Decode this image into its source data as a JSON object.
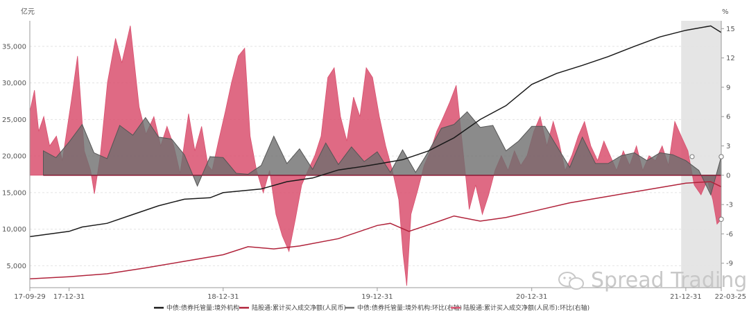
{
  "chart_data": {
    "type": "line",
    "y_left_unit": "亿元",
    "y_right_unit": "%",
    "y_left_ticks": [
      "5,000",
      "10,000",
      "15,000",
      "20,000",
      "25,000",
      "30,000",
      "35,000"
    ],
    "y_right_ticks": [
      "-9",
      "-6",
      "-3",
      "0",
      "3",
      "6",
      "9",
      "12",
      "15"
    ],
    "y_left_range": [
      2000,
      38500
    ],
    "y_right_range": [
      -11.5,
      15.8
    ],
    "x_ticks": [
      "17-09-29",
      "17-12-31",
      "18-12-31",
      "19-12-31",
      "20-12-31",
      "21-12-31",
      "22-03-25"
    ],
    "x_range": [
      "2017-09-29",
      "2022-03-25"
    ],
    "highlight_range": [
      "2021-12-20",
      "2022-03-25"
    ],
    "grid": "horizontal-dashed",
    "legend_position": "bottom",
    "watermark": "Spread Trading",
    "colors": {
      "custody": "#1a1a1a",
      "northbound": "#b0223a",
      "custody_mom": "#6e6e6e",
      "northbound_mom": "#d9506f",
      "highlight": "#e5e5e5"
    },
    "series": [
      {
        "name": "中债:债券托管量:境外机构",
        "axis": "left",
        "points": [
          [
            "2017-09-29",
            8980
          ],
          [
            "2017-12-31",
            9700
          ],
          [
            "2018-01-31",
            10300
          ],
          [
            "2018-03-31",
            10800
          ],
          [
            "2018-05-31",
            12000
          ],
          [
            "2018-07-31",
            13200
          ],
          [
            "2018-09-30",
            14100
          ],
          [
            "2018-11-30",
            14300
          ],
          [
            "2018-12-31",
            15000
          ],
          [
            "2019-03-31",
            15500
          ],
          [
            "2019-05-31",
            16500
          ],
          [
            "2019-07-31",
            17000
          ],
          [
            "2019-09-30",
            18100
          ],
          [
            "2019-11-30",
            18600
          ],
          [
            "2019-12-31",
            18900
          ],
          [
            "2020-02-29",
            19500
          ],
          [
            "2020-04-30",
            20700
          ],
          [
            "2020-06-30",
            22500
          ],
          [
            "2020-08-31",
            25000
          ],
          [
            "2020-10-31",
            26900
          ],
          [
            "2020-12-31",
            29800
          ],
          [
            "2021-02-28",
            31300
          ],
          [
            "2021-04-30",
            32400
          ],
          [
            "2021-06-30",
            33600
          ],
          [
            "2021-08-31",
            35000
          ],
          [
            "2021-10-31",
            36300
          ],
          [
            "2021-12-31",
            37200
          ],
          [
            "2022-02-28",
            37800
          ],
          [
            "2022-03-25",
            36900
          ]
        ]
      },
      {
        "name": "陆股通:累计买入成交净额(人民币)",
        "axis": "left",
        "points": [
          [
            "2017-09-29",
            3200
          ],
          [
            "2017-12-31",
            3500
          ],
          [
            "2018-03-31",
            3900
          ],
          [
            "2018-06-30",
            4700
          ],
          [
            "2018-09-30",
            5600
          ],
          [
            "2018-12-31",
            6500
          ],
          [
            "2019-02-28",
            7600
          ],
          [
            "2019-04-30",
            7300
          ],
          [
            "2019-06-30",
            7700
          ],
          [
            "2019-09-30",
            8700
          ],
          [
            "2019-12-31",
            10500
          ],
          [
            "2020-01-31",
            10800
          ],
          [
            "2020-03-15",
            9700
          ],
          [
            "2020-05-31",
            11200
          ],
          [
            "2020-06-30",
            11800
          ],
          [
            "2020-08-31",
            11100
          ],
          [
            "2020-10-31",
            11600
          ],
          [
            "2020-12-31",
            12400
          ],
          [
            "2021-03-31",
            13600
          ],
          [
            "2021-06-30",
            14500
          ],
          [
            "2021-09-30",
            15400
          ],
          [
            "2021-12-31",
            16300
          ],
          [
            "2022-02-28",
            16500
          ],
          [
            "2022-03-25",
            15800
          ]
        ]
      },
      {
        "name": "中债:债券托管量:境外机构:环比(右轴)",
        "axis": "right",
        "points": [
          [
            "2017-10-31",
            2.5
          ],
          [
            "2017-11-30",
            1.8
          ],
          [
            "2017-12-31",
            3.4
          ],
          [
            "2018-01-31",
            5.2
          ],
          [
            "2018-02-28",
            2.3
          ],
          [
            "2018-03-31",
            1.7
          ],
          [
            "2018-04-30",
            5.1
          ],
          [
            "2018-05-31",
            4.1
          ],
          [
            "2018-06-30",
            5.9
          ],
          [
            "2018-07-31",
            3.9
          ],
          [
            "2018-08-31",
            3.7
          ],
          [
            "2018-09-30",
            2.1
          ],
          [
            "2018-10-31",
            -1.1
          ],
          [
            "2018-11-30",
            1.9
          ],
          [
            "2018-12-31",
            1.8
          ],
          [
            "2019-01-31",
            0.2
          ],
          [
            "2019-02-28",
            0.1
          ],
          [
            "2019-03-31",
            1.0
          ],
          [
            "2019-04-30",
            4.0
          ],
          [
            "2019-05-31",
            1.2
          ],
          [
            "2019-06-30",
            2.7
          ],
          [
            "2019-07-31",
            0.6
          ],
          [
            "2019-08-31",
            3.3
          ],
          [
            "2019-09-30",
            1.1
          ],
          [
            "2019-10-31",
            2.9
          ],
          [
            "2019-11-30",
            1.4
          ],
          [
            "2019-12-31",
            2.4
          ],
          [
            "2020-01-31",
            0.3
          ],
          [
            "2020-02-29",
            2.6
          ],
          [
            "2020-03-31",
            0.3
          ],
          [
            "2020-04-30",
            2.4
          ],
          [
            "2020-05-31",
            4.8
          ],
          [
            "2020-06-30",
            5.2
          ],
          [
            "2020-07-31",
            6.5
          ],
          [
            "2020-08-31",
            4.9
          ],
          [
            "2020-09-30",
            5.1
          ],
          [
            "2020-10-31",
            2.5
          ],
          [
            "2020-11-30",
            3.5
          ],
          [
            "2020-12-31",
            5.0
          ],
          [
            "2021-01-31",
            5.0
          ],
          [
            "2021-02-28",
            3.0
          ],
          [
            "2021-03-31",
            0.8
          ],
          [
            "2021-04-30",
            3.9
          ],
          [
            "2021-05-31",
            1.2
          ],
          [
            "2021-06-30",
            1.2
          ],
          [
            "2021-07-31",
            2.0
          ],
          [
            "2021-08-31",
            2.3
          ],
          [
            "2021-09-30",
            1.5
          ],
          [
            "2021-10-31",
            2.3
          ],
          [
            "2021-11-30",
            2.1
          ],
          [
            "2021-12-31",
            1.5
          ],
          [
            "2022-01-31",
            0.5
          ],
          [
            "2022-02-28",
            -2.0
          ],
          [
            "2022-03-25",
            1.9
          ]
        ]
      },
      {
        "name": "陆股通:累计买入成交净额(人民币):环比(右轴)",
        "axis": "right",
        "points": [
          [
            "2017-09-29",
            6.5
          ],
          [
            "2017-10-10",
            8.7
          ],
          [
            "2017-10-20",
            4.5
          ],
          [
            "2017-11-01",
            6.0
          ],
          [
            "2017-11-15",
            3.0
          ],
          [
            "2017-12-01",
            4.0
          ],
          [
            "2017-12-15",
            1.5
          ],
          [
            "2018-01-05",
            7.5
          ],
          [
            "2018-01-20",
            12.2
          ],
          [
            "2018-02-05",
            2.5
          ],
          [
            "2018-02-20",
            0.5
          ],
          [
            "2018-03-01",
            -1.9
          ],
          [
            "2018-03-15",
            2.0
          ],
          [
            "2018-04-01",
            9.5
          ],
          [
            "2018-04-20",
            14.0
          ],
          [
            "2018-05-05",
            11.5
          ],
          [
            "2018-05-25",
            15.3
          ],
          [
            "2018-06-15",
            7.0
          ],
          [
            "2018-07-01",
            4.2
          ],
          [
            "2018-07-20",
            6.0
          ],
          [
            "2018-08-05",
            3.0
          ],
          [
            "2018-08-20",
            5.0
          ],
          [
            "2018-09-05",
            3.0
          ],
          [
            "2018-09-20",
            0.2
          ],
          [
            "2018-10-10",
            6.3
          ],
          [
            "2018-10-25",
            2.5
          ],
          [
            "2018-11-10",
            5.0
          ],
          [
            "2018-11-25",
            1.0
          ],
          [
            "2018-12-05",
            0.5
          ],
          [
            "2018-12-20",
            3.5
          ],
          [
            "2019-01-05",
            6.5
          ],
          [
            "2019-01-20",
            9.5
          ],
          [
            "2019-02-05",
            12.2
          ],
          [
            "2019-02-20",
            13.0
          ],
          [
            "2019-03-05",
            4.0
          ],
          [
            "2019-03-20",
            0.5
          ],
          [
            "2019-04-05",
            -1.8
          ],
          [
            "2019-04-20",
            0.5
          ],
          [
            "2019-05-05",
            -4.0
          ],
          [
            "2019-05-20",
            -6.2
          ],
          [
            "2019-06-05",
            -7.8
          ],
          [
            "2019-06-20",
            -4.5
          ],
          [
            "2019-07-05",
            -1.0
          ],
          [
            "2019-07-20",
            0.5
          ],
          [
            "2019-08-05",
            2.0
          ],
          [
            "2019-08-20",
            4.0
          ],
          [
            "2019-09-05",
            10.0
          ],
          [
            "2019-09-20",
            11.0
          ],
          [
            "2019-10-05",
            6.0
          ],
          [
            "2019-10-20",
            3.5
          ],
          [
            "2019-11-05",
            8.0
          ],
          [
            "2019-11-20",
            6.0
          ],
          [
            "2019-12-05",
            11.0
          ],
          [
            "2019-12-20",
            10.0
          ],
          [
            "2020-01-05",
            6.0
          ],
          [
            "2020-01-20",
            3.0
          ],
          [
            "2020-02-05",
            0.5
          ],
          [
            "2020-02-20",
            -2.5
          ],
          [
            "2020-03-01",
            -8.0
          ],
          [
            "2020-03-10",
            -11.3
          ],
          [
            "2020-03-20",
            -4.0
          ],
          [
            "2020-04-05",
            -1.5
          ],
          [
            "2020-04-20",
            1.0
          ],
          [
            "2020-05-05",
            2.5
          ],
          [
            "2020-05-20",
            4.5
          ],
          [
            "2020-06-05",
            6.0
          ],
          [
            "2020-06-20",
            7.5
          ],
          [
            "2020-07-05",
            9.2
          ],
          [
            "2020-07-20",
            3.0
          ],
          [
            "2020-08-05",
            -3.5
          ],
          [
            "2020-08-20",
            -1.0
          ],
          [
            "2020-09-05",
            -4.0
          ],
          [
            "2020-09-20",
            -2.0
          ],
          [
            "2020-10-05",
            0.5
          ],
          [
            "2020-10-20",
            2.0
          ],
          [
            "2020-11-05",
            0.5
          ],
          [
            "2020-11-20",
            2.5
          ],
          [
            "2020-12-05",
            1.0
          ],
          [
            "2020-12-20",
            2.0
          ],
          [
            "2021-01-05",
            4.5
          ],
          [
            "2021-01-20",
            6.0
          ],
          [
            "2021-02-05",
            3.0
          ],
          [
            "2021-02-20",
            5.5
          ],
          [
            "2021-03-05",
            3.5
          ],
          [
            "2021-03-20",
            0.5
          ],
          [
            "2021-04-05",
            2.0
          ],
          [
            "2021-04-20",
            4.0
          ],
          [
            "2021-05-05",
            5.5
          ],
          [
            "2021-05-20",
            3.0
          ],
          [
            "2021-06-05",
            1.5
          ],
          [
            "2021-06-20",
            3.5
          ],
          [
            "2021-07-05",
            2.0
          ],
          [
            "2021-07-20",
            0.5
          ],
          [
            "2021-08-05",
            2.5
          ],
          [
            "2021-08-20",
            1.0
          ],
          [
            "2021-09-05",
            3.0
          ],
          [
            "2021-09-20",
            0.5
          ],
          [
            "2021-10-05",
            2.0
          ],
          [
            "2021-10-20",
            1.5
          ],
          [
            "2021-11-05",
            3.0
          ],
          [
            "2021-11-20",
            1.0
          ],
          [
            "2021-12-05",
            5.5
          ],
          [
            "2021-12-20",
            4.0
          ],
          [
            "2022-01-05",
            2.5
          ],
          [
            "2022-01-20",
            -1.0
          ],
          [
            "2022-02-05",
            -2.0
          ],
          [
            "2022-02-20",
            -0.5
          ],
          [
            "2022-03-05",
            -2.5
          ],
          [
            "2022-03-15",
            -5.0
          ],
          [
            "2022-03-25",
            -4.5
          ]
        ]
      }
    ],
    "end_markers": [
      {
        "series": 2,
        "value": 1.9
      },
      {
        "series": 3,
        "value": -4.5
      }
    ]
  }
}
